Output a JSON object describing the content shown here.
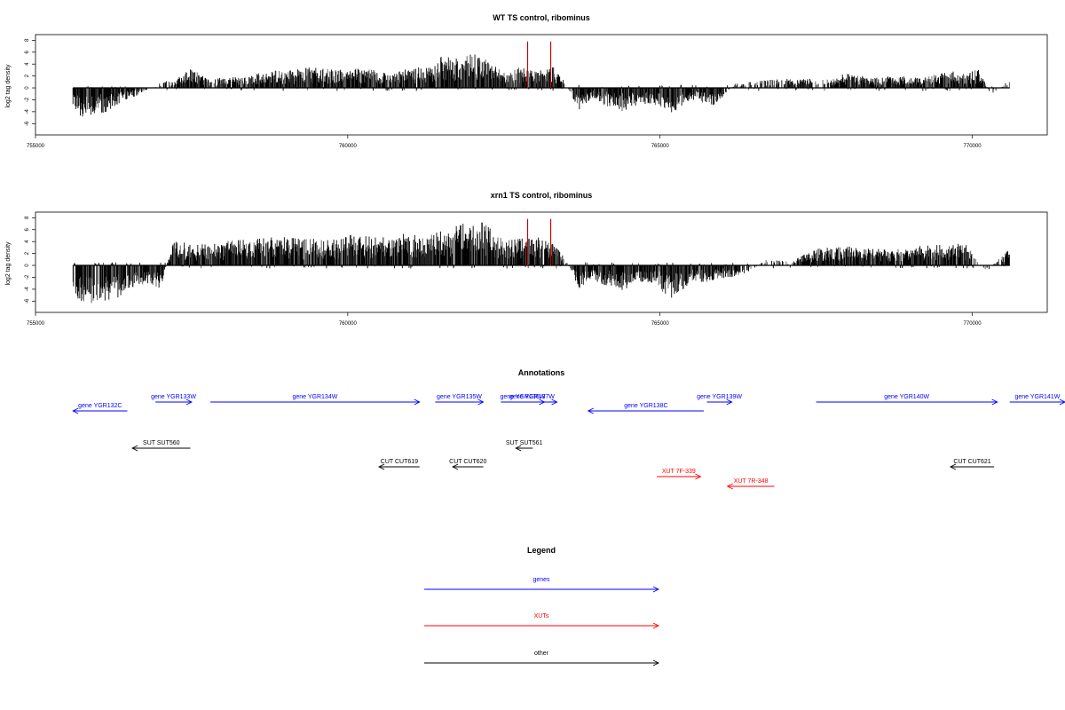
{
  "chart_data": [
    {
      "type": "bar",
      "title": "WT TS control, ribominus",
      "ylabel": "log2 tag density",
      "xlabel": "",
      "xlim": [
        755000,
        771200
      ],
      "ylim": [
        -7,
        8.5
      ],
      "xticks": [
        755000,
        760000,
        765000,
        770000
      ],
      "yticks": [
        -6,
        -4,
        -2,
        0,
        2,
        4,
        6,
        8
      ],
      "data_extent": [
        755600,
        770600
      ],
      "signal_color": "#000000",
      "markers": {
        "color": "#cc0000",
        "positions": [
          762880,
          763250
        ],
        "height": 7.8
      },
      "profile": [
        {
          "x": 755600,
          "y": -2.6
        },
        {
          "x": 755700,
          "y": -4.6
        },
        {
          "x": 755800,
          "y": -3.8
        },
        {
          "x": 755900,
          "y": -4.2
        },
        {
          "x": 756000,
          "y": -3.0
        },
        {
          "x": 756100,
          "y": -4.0
        },
        {
          "x": 756200,
          "y": -3.5
        },
        {
          "x": 756300,
          "y": -2.5
        },
        {
          "x": 756400,
          "y": -1.8
        },
        {
          "x": 756600,
          "y": -1.2
        },
        {
          "x": 757000,
          "y": 0.8
        },
        {
          "x": 757200,
          "y": 1.2
        },
        {
          "x": 757500,
          "y": 2.8
        },
        {
          "x": 757800,
          "y": 1.0
        },
        {
          "x": 758000,
          "y": 1.6
        },
        {
          "x": 758400,
          "y": 1.5
        },
        {
          "x": 758700,
          "y": 2.6
        },
        {
          "x": 759000,
          "y": 2.4
        },
        {
          "x": 759400,
          "y": 3.0
        },
        {
          "x": 759800,
          "y": 2.6
        },
        {
          "x": 760200,
          "y": 2.8
        },
        {
          "x": 760600,
          "y": 2.4
        },
        {
          "x": 761000,
          "y": 2.9
        },
        {
          "x": 761400,
          "y": 3.2
        },
        {
          "x": 761500,
          "y": 4.6
        },
        {
          "x": 761800,
          "y": 4.2
        },
        {
          "x": 762000,
          "y": 5.0
        },
        {
          "x": 762200,
          "y": 4.2
        },
        {
          "x": 762500,
          "y": 2.2
        },
        {
          "x": 762700,
          "y": 3.0
        },
        {
          "x": 763000,
          "y": 2.6
        },
        {
          "x": 763300,
          "y": 3.0
        },
        {
          "x": 763500,
          "y": 0.5
        },
        {
          "x": 763700,
          "y": -3.2
        },
        {
          "x": 763900,
          "y": -1.5
        },
        {
          "x": 764100,
          "y": -2.5
        },
        {
          "x": 764400,
          "y": -3.4
        },
        {
          "x": 764700,
          "y": -2.2
        },
        {
          "x": 764900,
          "y": -2.6
        },
        {
          "x": 765200,
          "y": -3.6
        },
        {
          "x": 765500,
          "y": -1.8
        },
        {
          "x": 765800,
          "y": -2.6
        },
        {
          "x": 765900,
          "y": -2.4
        },
        {
          "x": 766200,
          "y": 0.6
        },
        {
          "x": 766800,
          "y": 1.2
        },
        {
          "x": 767200,
          "y": 1.4
        },
        {
          "x": 767700,
          "y": 1.2
        },
        {
          "x": 768000,
          "y": 2.2
        },
        {
          "x": 768400,
          "y": 1.4
        },
        {
          "x": 768800,
          "y": 1.8
        },
        {
          "x": 769200,
          "y": 1.6
        },
        {
          "x": 769700,
          "y": 2.4
        },
        {
          "x": 770100,
          "y": 2.6
        },
        {
          "x": 770300,
          "y": -1.0
        },
        {
          "x": 770600,
          "y": 1.2
        }
      ]
    },
    {
      "type": "bar",
      "title": "xrn1 TS control, ribominus",
      "ylabel": "log2 tag density",
      "xlabel": "",
      "xlim": [
        755000,
        771200
      ],
      "ylim": [
        -7,
        8.5
      ],
      "xticks": [
        755000,
        760000,
        765000,
        770000
      ],
      "yticks": [
        -6,
        -4,
        -2,
        0,
        2,
        4,
        6,
        8
      ],
      "data_extent": [
        755600,
        770600
      ],
      "signal_color": "#000000",
      "markers": {
        "color": "#cc0000",
        "positions": [
          762880,
          763250
        ],
        "height": 7.8
      },
      "profile": [
        {
          "x": 755600,
          "y": -4.5
        },
        {
          "x": 755700,
          "y": -5.8
        },
        {
          "x": 755800,
          "y": -5.4
        },
        {
          "x": 755900,
          "y": -5.5
        },
        {
          "x": 756000,
          "y": -5.0
        },
        {
          "x": 756100,
          "y": -5.6
        },
        {
          "x": 756200,
          "y": -4.8
        },
        {
          "x": 756400,
          "y": -4.6
        },
        {
          "x": 756600,
          "y": -3.0
        },
        {
          "x": 756800,
          "y": -2.6
        },
        {
          "x": 757000,
          "y": -3.6
        },
        {
          "x": 757200,
          "y": 3.5
        },
        {
          "x": 757500,
          "y": 3.2
        },
        {
          "x": 757800,
          "y": 3.0
        },
        {
          "x": 758100,
          "y": 3.6
        },
        {
          "x": 758500,
          "y": 3.8
        },
        {
          "x": 758900,
          "y": 4.2
        },
        {
          "x": 759300,
          "y": 3.8
        },
        {
          "x": 759700,
          "y": 4.0
        },
        {
          "x": 760100,
          "y": 4.5
        },
        {
          "x": 760500,
          "y": 4.0
        },
        {
          "x": 760900,
          "y": 4.6
        },
        {
          "x": 761300,
          "y": 4.2
        },
        {
          "x": 761500,
          "y": 5.5
        },
        {
          "x": 761800,
          "y": 5.8
        },
        {
          "x": 762000,
          "y": 7.0
        },
        {
          "x": 762200,
          "y": 6.0
        },
        {
          "x": 762500,
          "y": 3.6
        },
        {
          "x": 762700,
          "y": 3.8
        },
        {
          "x": 763000,
          "y": 4.2
        },
        {
          "x": 763300,
          "y": 3.4
        },
        {
          "x": 763500,
          "y": 0.6
        },
        {
          "x": 763700,
          "y": -3.6
        },
        {
          "x": 763900,
          "y": -2.0
        },
        {
          "x": 764100,
          "y": -2.8
        },
        {
          "x": 764400,
          "y": -3.6
        },
        {
          "x": 764700,
          "y": -2.4
        },
        {
          "x": 764900,
          "y": -3.0
        },
        {
          "x": 765200,
          "y": -4.8
        },
        {
          "x": 765500,
          "y": -2.4
        },
        {
          "x": 765800,
          "y": -2.4
        },
        {
          "x": 766100,
          "y": -1.8
        },
        {
          "x": 766400,
          "y": -1.0
        },
        {
          "x": 766700,
          "y": 0.8
        },
        {
          "x": 767100,
          "y": 0.6
        },
        {
          "x": 767500,
          "y": 2.4
        },
        {
          "x": 767900,
          "y": 2.8
        },
        {
          "x": 768300,
          "y": 2.6
        },
        {
          "x": 768700,
          "y": 2.2
        },
        {
          "x": 769100,
          "y": 2.8
        },
        {
          "x": 769500,
          "y": 3.0
        },
        {
          "x": 769900,
          "y": 3.2
        },
        {
          "x": 770200,
          "y": -1.2
        },
        {
          "x": 770600,
          "y": 2.6
        }
      ]
    }
  ],
  "annotations": {
    "title": "Annotations",
    "xlim": [
      755000,
      771200
    ],
    "items": [
      {
        "label": "gene YGR132C",
        "start": 755600,
        "end": 756470,
        "strand": "-",
        "row": 1,
        "category": "gene"
      },
      {
        "label": "gene YGR133W",
        "start": 756920,
        "end": 757500,
        "strand": "+",
        "row": 0,
        "category": "gene"
      },
      {
        "label": "gene YGR134W",
        "start": 757800,
        "end": 761150,
        "strand": "+",
        "row": 0,
        "category": "gene"
      },
      {
        "label": "gene YGR135W",
        "start": 761400,
        "end": 762170,
        "strand": "+",
        "row": 0,
        "category": "gene"
      },
      {
        "label": "gene YGR136W",
        "start": 762450,
        "end": 763150,
        "strand": "+",
        "row": 0,
        "category": "gene"
      },
      {
        "label": "gene YGR137W",
        "start": 762550,
        "end": 763350,
        "strand": "+",
        "row": 0,
        "category": "gene"
      },
      {
        "label": "gene YGR138C",
        "start": 763850,
        "end": 765700,
        "strand": "-",
        "row": 1,
        "category": "gene"
      },
      {
        "label": "gene YGR139W",
        "start": 765750,
        "end": 766150,
        "strand": "+",
        "row": 0,
        "category": "gene"
      },
      {
        "label": "gene YGR140W",
        "start": 767500,
        "end": 770400,
        "strand": "+",
        "row": 0,
        "category": "gene"
      },
      {
        "label": "gene YGR141W",
        "start": 770600,
        "end": 772000,
        "strand": "+",
        "row": 0,
        "category": "gene"
      },
      {
        "label": "SUT SUT560",
        "start": 756550,
        "end": 757480,
        "strand": "-",
        "row": 2,
        "category": "other"
      },
      {
        "label": "SUT SUT561",
        "start": 762690,
        "end": 762960,
        "strand": "-",
        "row": 2,
        "category": "other"
      },
      {
        "label": "CUT CUT619",
        "start": 760500,
        "end": 761150,
        "strand": "-",
        "row": 3,
        "category": "other"
      },
      {
        "label": "CUT CUT620",
        "start": 761680,
        "end": 762170,
        "strand": "-",
        "row": 3,
        "category": "other"
      },
      {
        "label": "CUT CUT621",
        "start": 769650,
        "end": 770350,
        "strand": "-",
        "row": 3,
        "category": "other"
      },
      {
        "label": "XUT 7F-339",
        "start": 764950,
        "end": 765650,
        "strand": "+",
        "row": 4,
        "category": "xut"
      },
      {
        "label": "XUT 7R-348",
        "start": 766080,
        "end": 766830,
        "strand": "-",
        "row": 5,
        "category": "xut"
      }
    ]
  },
  "legend": {
    "title": "Legend",
    "entries": [
      {
        "label": "genes",
        "color": "#0000ff"
      },
      {
        "label": "XUTs",
        "color": "#ff0000"
      },
      {
        "label": "other",
        "color": "#000000"
      }
    ]
  },
  "colors": {
    "gene": "#0000ff",
    "xut": "#ff0000",
    "other": "#000000",
    "marker": "#cc0000"
  }
}
